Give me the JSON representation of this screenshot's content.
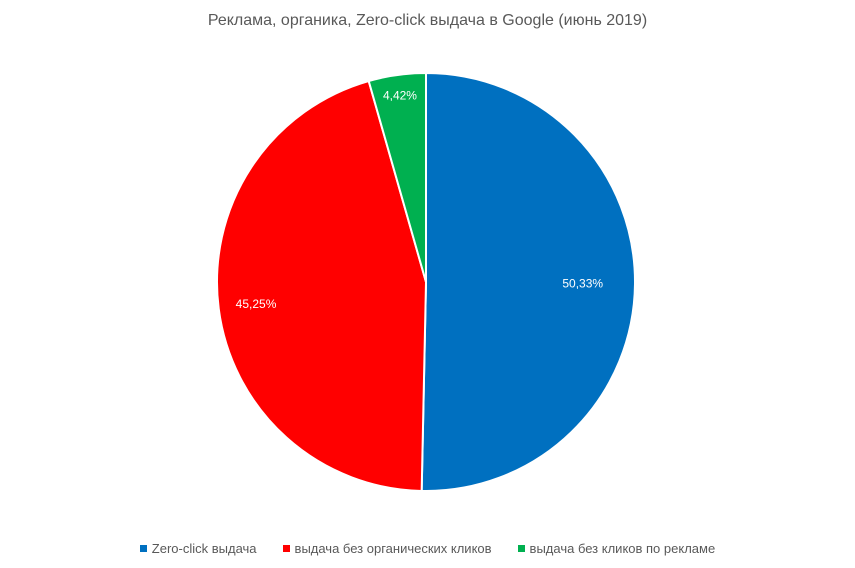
{
  "chart_data": {
    "type": "pie",
    "title": "Реклама, органика, Zero-click выдача в Google (июнь 2019)",
    "legend_position": "bottom",
    "slices": [
      {
        "name": "Zero-click выдача",
        "value": 50.33,
        "label": "50,33%",
        "color": "#0070C0"
      },
      {
        "name": "выдача без органических кликов",
        "value": 45.25,
        "label": "45,25%",
        "color": "#FF0000"
      },
      {
        "name": "выдача без кликов по рекламе",
        "value": 4.42,
        "label": "4,42%",
        "color": "#00B050"
      }
    ]
  }
}
